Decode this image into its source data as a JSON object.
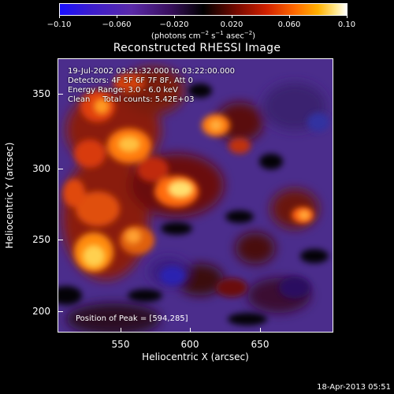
{
  "colorbar": {
    "ticks": [
      "−0.10",
      "−0.060",
      "−0.020",
      "0.020",
      "0.060",
      "0.10"
    ],
    "unit_text": "(photons cm",
    "unit_exp1": "−2",
    "unit_mid": " s",
    "unit_exp2": "−1",
    "unit_mid2": " asec",
    "unit_exp3": "−2",
    "unit_end": ")"
  },
  "title": "Reconstructed RHESSI Image",
  "info": {
    "time": "19-Jul-2002 03:21:32.000 to 03:22:00.000",
    "detectors": "Detectors: 4F 5F 6F 7F 8F, Att 0",
    "energy": "Energy Range: 3.0 - 6.0 keV",
    "clean": "Clean     Total counts: 5.42E+03"
  },
  "peak": "Position of Peak = [594,285]",
  "axes": {
    "xlabel": "Heliocentric X (arcsec)",
    "ylabel": "Heliocentric Y (arcsec)",
    "xticks": [
      "550",
      "600",
      "650"
    ],
    "yticks": [
      "350",
      "300",
      "250",
      "200"
    ]
  },
  "timestamp": "18-Apr-2013 05:51",
  "colors": {
    "background": "#000000",
    "frame": "#ffffff",
    "text": "#ffffff"
  }
}
